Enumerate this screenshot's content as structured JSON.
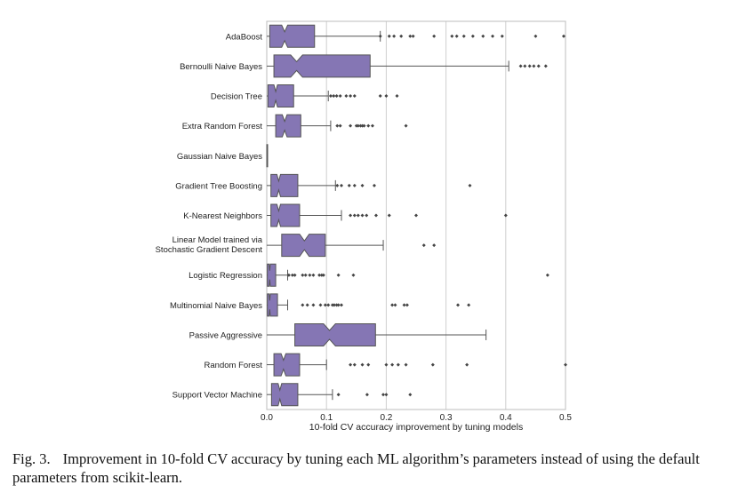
{
  "chart_data": {
    "type": "boxplot",
    "orientation": "horizontal",
    "notched": true,
    "xlabel": "10-fold CV accuracy improvement by tuning models",
    "ylabel": "",
    "xlim": [
      0.0,
      0.5
    ],
    "xticks": [
      "0.0",
      "0.1",
      "0.2",
      "0.3",
      "0.4",
      "0.5"
    ],
    "grid": "vertical",
    "box_color": "#8576b4",
    "categories": [
      {
        "label": [
          "AdaBoost"
        ],
        "whislo": 0.0,
        "q1": 0.005,
        "med": 0.03,
        "q3": 0.08,
        "whishi": 0.19,
        "notch": [
          0.025,
          0.035
        ],
        "fliers": [
          0.19,
          0.205,
          0.213,
          0.225,
          0.24,
          0.245,
          0.28,
          0.31,
          0.318,
          0.33,
          0.345,
          0.362,
          0.378,
          0.394,
          0.45,
          0.497
        ]
      },
      {
        "label": [
          "Bernoulli Naive Bayes"
        ],
        "whislo": 0.0,
        "q1": 0.012,
        "med": 0.05,
        "q3": 0.173,
        "whishi": 0.405,
        "notch": [
          0.04,
          0.06
        ],
        "fliers": [
          0.425,
          0.432,
          0.44,
          0.447,
          0.455,
          0.467
        ]
      },
      {
        "label": [
          "Decision Tree"
        ],
        "whislo": 0.0,
        "q1": 0.002,
        "med": 0.015,
        "q3": 0.045,
        "whishi": 0.103,
        "notch": [
          0.012,
          0.018
        ],
        "fliers": [
          0.107,
          0.112,
          0.117,
          0.123,
          0.133,
          0.14,
          0.147,
          0.19,
          0.2,
          0.218
        ]
      },
      {
        "label": [
          "Extra Random Forest"
        ],
        "whislo": 0.0,
        "q1": 0.015,
        "med": 0.03,
        "q3": 0.057,
        "whishi": 0.107,
        "notch": [
          0.026,
          0.034
        ],
        "fliers": [
          0.118,
          0.123,
          0.14,
          0.15,
          0.153,
          0.157,
          0.16,
          0.163,
          0.17,
          0.177,
          0.233
        ]
      },
      {
        "label": [
          "Gaussian Naive Bayes"
        ],
        "whislo": 0.0,
        "q1": 0.0,
        "med": 0.0,
        "q3": 0.001,
        "whishi": 0.001,
        "notch": [
          0.0,
          0.0
        ],
        "fliers": []
      },
      {
        "label": [
          "Gradient Tree Boosting"
        ],
        "whislo": 0.0,
        "q1": 0.007,
        "med": 0.02,
        "q3": 0.052,
        "whishi": 0.115,
        "notch": [
          0.017,
          0.023
        ],
        "fliers": [
          0.118,
          0.125,
          0.138,
          0.147,
          0.16,
          0.18,
          0.34
        ]
      },
      {
        "label": [
          "K-Nearest Neighbors"
        ],
        "whislo": 0.0,
        "q1": 0.007,
        "med": 0.02,
        "q3": 0.055,
        "whishi": 0.125,
        "notch": [
          0.017,
          0.023
        ],
        "fliers": [
          0.14,
          0.147,
          0.153,
          0.16,
          0.167,
          0.183,
          0.205,
          0.25,
          0.4
        ]
      },
      {
        "label": [
          "Linear Model trained via",
          "Stochastic Gradient Descent"
        ],
        "whislo": 0.0,
        "q1": 0.025,
        "med": 0.063,
        "q3": 0.098,
        "whishi": 0.195,
        "notch": [
          0.055,
          0.071
        ],
        "fliers": [
          0.263,
          0.28
        ]
      },
      {
        "label": [
          "Logistic Regression"
        ],
        "whislo": 0.0,
        "q1": 0.001,
        "med": 0.005,
        "q3": 0.015,
        "whishi": 0.035,
        "notch": [
          0.004,
          0.006
        ],
        "fliers": [
          0.037,
          0.043,
          0.047,
          0.06,
          0.065,
          0.072,
          0.078,
          0.088,
          0.092,
          0.095,
          0.12,
          0.145,
          0.47
        ]
      },
      {
        "label": [
          "Multinomial Naive Bayes"
        ],
        "whislo": 0.0,
        "q1": 0.001,
        "med": 0.005,
        "q3": 0.018,
        "whishi": 0.035,
        "notch": [
          0.004,
          0.006
        ],
        "fliers": [
          0.06,
          0.068,
          0.078,
          0.09,
          0.098,
          0.103,
          0.11,
          0.113,
          0.117,
          0.12,
          0.125,
          0.21,
          0.215,
          0.23,
          0.235,
          0.32,
          0.338
        ]
      },
      {
        "label": [
          "Passive Aggressive"
        ],
        "whislo": 0.0,
        "q1": 0.047,
        "med": 0.105,
        "q3": 0.182,
        "whishi": 0.367,
        "notch": [
          0.095,
          0.115
        ],
        "fliers": []
      },
      {
        "label": [
          "Random Forest"
        ],
        "whislo": 0.0,
        "q1": 0.012,
        "med": 0.028,
        "q3": 0.055,
        "whishi": 0.1,
        "notch": [
          0.024,
          0.032
        ],
        "fliers": [
          0.14,
          0.147,
          0.16,
          0.17,
          0.2,
          0.21,
          0.22,
          0.233,
          0.278,
          0.335,
          0.5
        ]
      },
      {
        "label": [
          "Support Vector Machine"
        ],
        "whislo": 0.0,
        "q1": 0.008,
        "med": 0.022,
        "q3": 0.052,
        "whishi": 0.11,
        "notch": [
          0.019,
          0.025
        ],
        "fliers": [
          0.12,
          0.168,
          0.195,
          0.2,
          0.24
        ]
      }
    ]
  },
  "caption": {
    "label": "Fig. 3.",
    "text": "Improvement in 10-fold CV accuracy by tuning each ML algorithm’s parameters instead of using the default parameters from scikit-learn."
  }
}
